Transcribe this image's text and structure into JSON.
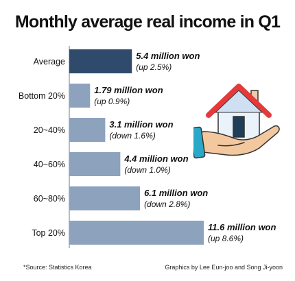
{
  "title": "Monthly average real income in Q1",
  "source": "*Source: Statistics Korea",
  "credit": "Graphics by Lee Eun-joo and Song Ji-yoon",
  "colors": {
    "highlight": "#2f4a6b",
    "bar": "#8da2bd",
    "axis": "#6b7a8c"
  },
  "illustration": "house-on-hand-icon",
  "chart_data": {
    "type": "bar",
    "orientation": "horizontal",
    "title": "Monthly average real income in Q1",
    "unit": "million won",
    "categories": [
      "Average",
      "Bottom 20%",
      "20~40%",
      "40~60%",
      "60~80%",
      "Top 20%"
    ],
    "values": [
      5.4,
      1.79,
      3.1,
      4.4,
      6.1,
      11.6
    ],
    "value_labels": [
      "5.4 million won",
      "1.79 million won",
      "3.1 million won",
      "4.4 million won",
      "6.1 million won",
      "11.6 million won"
    ],
    "change_labels": [
      "(up 2.5%)",
      "(up 0.9%)",
      "(down 1.6%)",
      "(down 1.0%)",
      "(down 2.8%)",
      "(up 8.6%)"
    ],
    "highlight_index": 0,
    "xlim": [
      0,
      11.6
    ],
    "grid": false
  }
}
